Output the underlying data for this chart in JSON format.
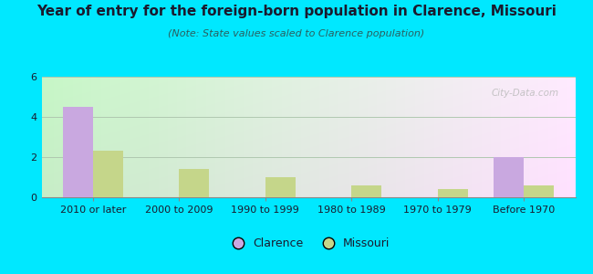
{
  "title": "Year of entry for the foreign-born population in Clarence, Missouri",
  "subtitle": "(Note: State values scaled to Clarence population)",
  "categories": [
    "2010 or later",
    "2000 to 2009",
    "1990 to 1999",
    "1980 to 1989",
    "1970 to 1979",
    "Before 1970"
  ],
  "clarence_values": [
    4.5,
    0,
    0,
    0,
    0,
    2.0
  ],
  "missouri_values": [
    2.3,
    1.4,
    1.0,
    0.6,
    0.4,
    0.6
  ],
  "clarence_color": "#c9a8e0",
  "missouri_color": "#c5d68a",
  "background_outer": "#00e8ff",
  "ylim": [
    0,
    6
  ],
  "yticks": [
    0,
    2,
    4,
    6
  ],
  "bar_width": 0.35,
  "legend_clarence": "Clarence",
  "legend_missouri": "Missouri",
  "title_fontsize": 11,
  "subtitle_fontsize": 8,
  "tick_fontsize": 8,
  "legend_fontsize": 9,
  "title_color": "#1a1a2e",
  "subtitle_color": "#2a6060",
  "tick_color": "#1a1a2e"
}
